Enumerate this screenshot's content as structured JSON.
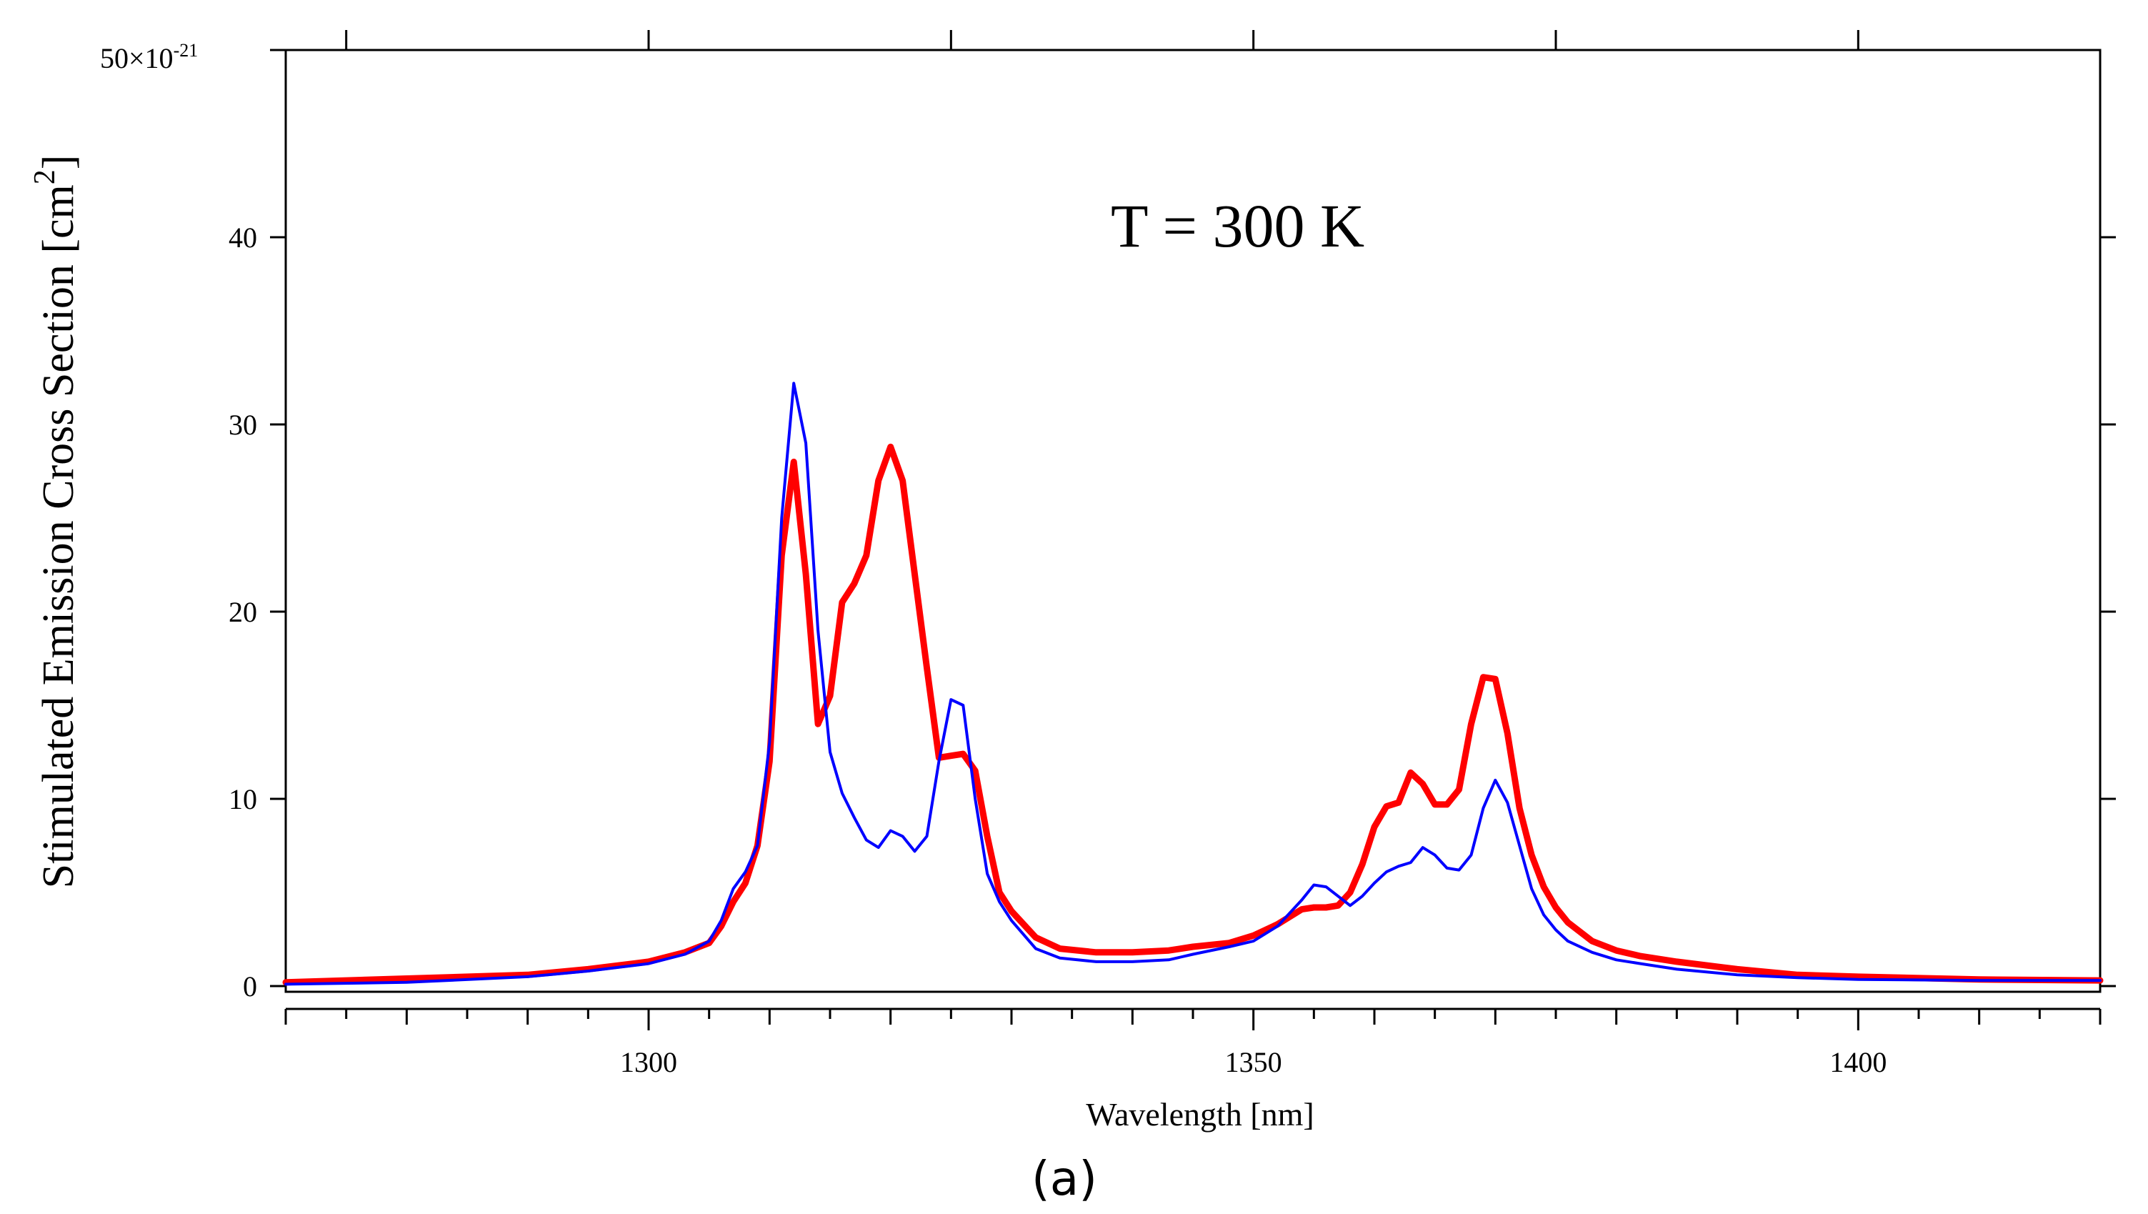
{
  "colors": {
    "series_red": "#ff0000",
    "series_blue": "#0000ff",
    "axis": "#000000"
  },
  "chart_data": {
    "type": "line",
    "title": "",
    "annotation": "T = 300 K",
    "xlabel": "Wavelength [nm]",
    "ylabel_main": "Stimulated Emission Cross Section [cm",
    "ylabel_sup": "2",
    "ylabel_close": "]",
    "y_top_label": "50×10",
    "y_top_exp": "-21",
    "panel_label": "(a)",
    "xlim": [
      1270,
      1420
    ],
    "ylim": [
      0,
      50
    ],
    "x_major_ticks": [
      1300,
      1350,
      1400
    ],
    "x_tick_labels": [
      "1300",
      "1350",
      "1400"
    ],
    "x_minor_step": 5,
    "y_ticks": [
      0,
      10,
      20,
      30,
      40
    ],
    "y_tick_labels": [
      "0",
      "10",
      "20",
      "30",
      "40"
    ],
    "series": [
      {
        "name": "red",
        "color": "#ff0000",
        "x": [
          1270,
          1280,
          1290,
          1295,
          1300,
          1303,
          1305,
          1306,
          1307,
          1308,
          1309,
          1310,
          1311,
          1312,
          1313,
          1314,
          1315,
          1316,
          1317,
          1318,
          1319,
          1320,
          1321,
          1322,
          1323,
          1324,
          1325,
          1326,
          1327,
          1328,
          1329,
          1330,
          1332,
          1334,
          1337,
          1340,
          1343,
          1345,
          1348,
          1350,
          1352,
          1354,
          1355,
          1356,
          1357,
          1358,
          1359,
          1360,
          1361,
          1362,
          1363,
          1364,
          1365,
          1366,
          1367,
          1368,
          1369,
          1370,
          1371,
          1372,
          1373,
          1374,
          1375,
          1376,
          1378,
          1380,
          1382,
          1385,
          1390,
          1395,
          1400,
          1410,
          1420
        ],
        "y": [
          0.2,
          0.4,
          0.6,
          0.9,
          1.3,
          1.8,
          2.3,
          3.2,
          4.5,
          5.5,
          7.5,
          12,
          23,
          28,
          22,
          14,
          15.5,
          20.5,
          21.5,
          23,
          27,
          28.8,
          27,
          22,
          17,
          12.2,
          12.3,
          12.4,
          11.5,
          8,
          5,
          4,
          2.6,
          2.0,
          1.8,
          1.8,
          1.9,
          2.1,
          2.3,
          2.7,
          3.3,
          4.1,
          4.2,
          4.2,
          4.3,
          5.0,
          6.5,
          8.5,
          9.6,
          9.8,
          11.4,
          10.8,
          9.7,
          9.7,
          10.5,
          14,
          16.5,
          16.4,
          13.5,
          9.5,
          7,
          5.3,
          4.2,
          3.4,
          2.4,
          1.9,
          1.6,
          1.3,
          0.9,
          0.6,
          0.5,
          0.35,
          0.3
        ]
      },
      {
        "name": "blue",
        "color": "#0000ff",
        "x": [
          1270,
          1280,
          1290,
          1295,
          1300,
          1303,
          1305,
          1306,
          1307,
          1308,
          1309,
          1310,
          1311,
          1312,
          1313,
          1314,
          1315,
          1316,
          1317,
          1318,
          1319,
          1320,
          1321,
          1322,
          1323,
          1324,
          1325,
          1326,
          1327,
          1328,
          1329,
          1330,
          1332,
          1334,
          1337,
          1340,
          1343,
          1345,
          1348,
          1350,
          1352,
          1354,
          1355,
          1356,
          1357,
          1358,
          1359,
          1360,
          1361,
          1362,
          1363,
          1364,
          1365,
          1366,
          1367,
          1368,
          1369,
          1370,
          1371,
          1372,
          1373,
          1374,
          1375,
          1376,
          1378,
          1380,
          1382,
          1385,
          1390,
          1395,
          1400,
          1410,
          1420
        ],
        "y": [
          0.1,
          0.2,
          0.5,
          0.8,
          1.2,
          1.7,
          2.4,
          3.5,
          5.2,
          6.1,
          7.5,
          13,
          25,
          32.2,
          29,
          19,
          12.5,
          10.3,
          9,
          7.8,
          7.4,
          8.3,
          8,
          7.2,
          8,
          12,
          15.3,
          15,
          10,
          6,
          4.5,
          3.5,
          2,
          1.5,
          1.3,
          1.3,
          1.4,
          1.7,
          2.1,
          2.4,
          3.2,
          4.6,
          5.4,
          5.3,
          4.8,
          4.3,
          4.8,
          5.5,
          6.1,
          6.4,
          6.6,
          7.4,
          7.0,
          6.3,
          6.2,
          7.0,
          9.5,
          11,
          9.8,
          7.5,
          5.2,
          3.8,
          3.0,
          2.4,
          1.8,
          1.4,
          1.2,
          0.9,
          0.6,
          0.45,
          0.35,
          0.3,
          0.3
        ]
      }
    ]
  }
}
